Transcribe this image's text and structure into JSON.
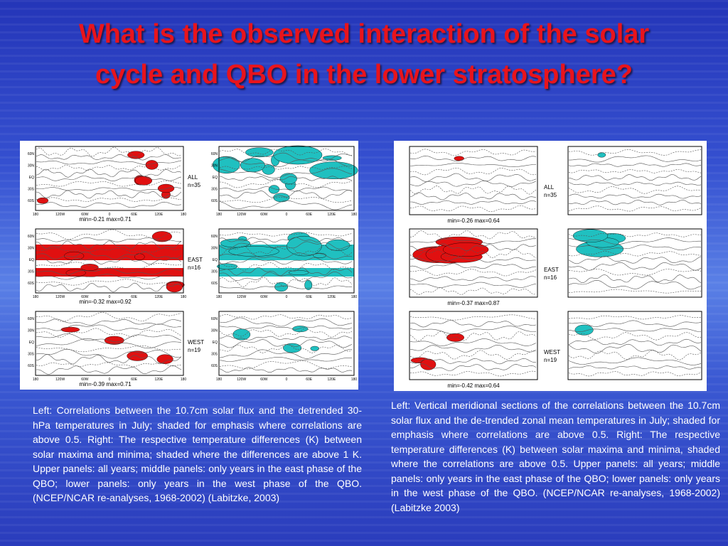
{
  "title": "What is the observed interaction of the solar cycle and QBO in the lower stratosphere?",
  "left_figure": {
    "lat_labels": [
      "60N",
      "30N",
      "EQ",
      "30S",
      "60S"
    ],
    "lon_labels": [
      "180",
      "120W",
      "60W",
      "0",
      "60E",
      "120E",
      "180"
    ],
    "panels": [
      {
        "label": "ALL",
        "n": "n=35",
        "range": "min=-0.21 max=0.71"
      },
      {
        "label": "EAST",
        "n": "n=16",
        "range": "min=-0.32 max=0.92"
      },
      {
        "label": "WEST",
        "n": "n=19",
        "range": "min=-0.39 max=0.71"
      }
    ]
  },
  "right_figure": {
    "panels": [
      {
        "label": "ALL",
        "n": "n=35",
        "range": "min=-0.26 max=0.64"
      },
      {
        "label": "EAST",
        "n": "n=16",
        "range": "min=-0.37 max=0.87"
      },
      {
        "label": "WEST",
        "n": "n=19",
        "range": "min=-0.42 max=0.64"
      }
    ]
  },
  "left_caption": "Left: Correlations between the 10.7cm solar flux and the detrended 30-hPa temperatures in July; shaded for emphasis where correlations are above 0.5.  Right: The respective temperature differences (K) between solar maxima and minima; shaded where the differences are above 1 K. Upper panels: all years; middle panels: only years in the east phase of the QBO; lower panels: only years in the west phase of the QBO. (NCEP/NCAR re-analyses, 1968-2002) (Labitzke, 2003)",
  "right_caption": "Left: Vertical meridional sections of the correlations between the 10.7cm solar flux and the de-trended zonal mean temperatures in July; shaded for emphasis where correlations are above 0.5. Right: The respective temperature differences (K) between solar maxima and minima, shaded where the correlations are above 0.5. Upper panels: all years; middle panels: only years in the east phase of the QBO; lower panels: only years in the west phase of the QBO. (NCEP/NCAR re-analyses, 1968-2002) (Labitzke 2003)"
}
